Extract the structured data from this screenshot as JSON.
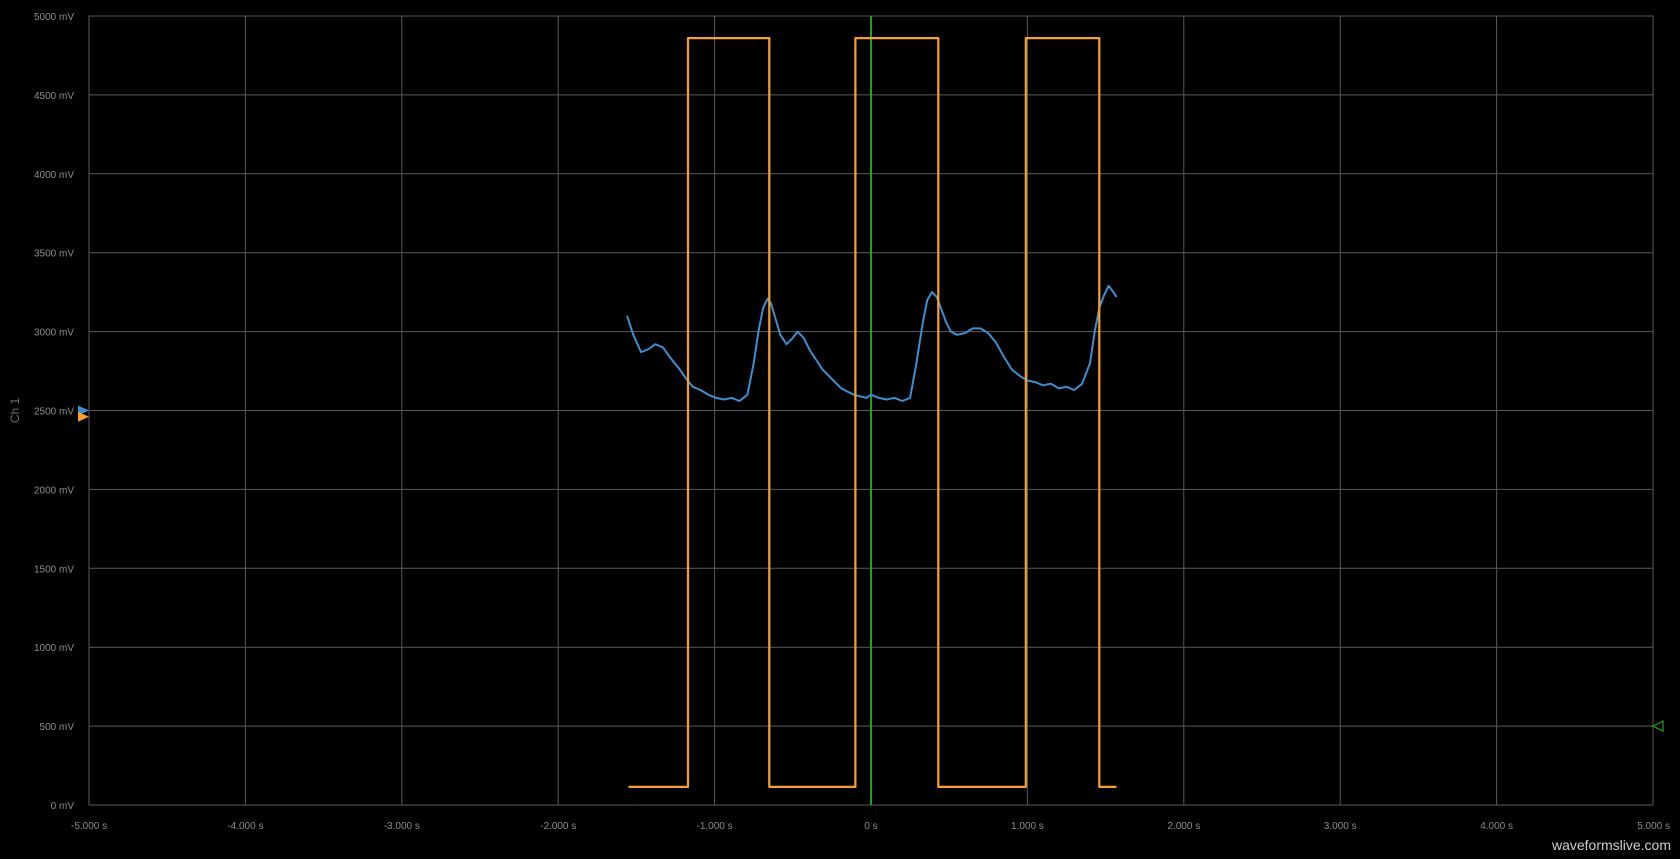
{
  "watermark": "waveformslive.com",
  "colors": {
    "background": "#000000",
    "grid": "#5a5a5a",
    "cursor": "#1fa31f",
    "ch1": "#3d8fd0",
    "ch2": "#f7a12a",
    "tick_text": "#8c8c8c"
  },
  "chart_data": {
    "type": "line",
    "ylabel": "Ch 1",
    "xlim": [
      -5.0,
      5.0
    ],
    "ylim": [
      0,
      5000
    ],
    "grid": true,
    "x_ticks": [
      -5,
      -4,
      -3,
      -2,
      -1,
      0,
      1,
      2,
      3,
      4,
      5
    ],
    "x_tick_labels": [
      "-5.000 s",
      "-4.000 s",
      "-3.000 s",
      "-2.000 s",
      "-1.000 s",
      "0 s",
      "1.000 s",
      "2.000 s",
      "3.000 s",
      "4.000 s",
      "5.000 s"
    ],
    "y_ticks": [
      0,
      500,
      1000,
      1500,
      2000,
      2500,
      3000,
      3500,
      4000,
      4500,
      5000
    ],
    "y_tick_labels": [
      "0 mV",
      "500 mV",
      "1000 mV",
      "1500 mV",
      "2000 mV",
      "2500 mV",
      "3000 mV",
      "3500 mV",
      "4000 mV",
      "4500 mV",
      "5000 mV"
    ],
    "cursor_x": 0,
    "ch1_offset_marker": 2500,
    "ch2_offset_marker": 2460,
    "trigger_level_marker": 500,
    "series": [
      {
        "key": "ch1",
        "x": [
          -1.56,
          -1.52,
          -1.47,
          -1.42,
          -1.38,
          -1.33,
          -1.28,
          -1.23,
          -1.18,
          -1.14,
          -1.09,
          -1.04,
          -0.99,
          -0.94,
          -0.89,
          -0.84,
          -0.79,
          -0.75,
          -0.72,
          -0.69,
          -0.66,
          -0.64,
          -0.61,
          -0.58,
          -0.54,
          -0.5,
          -0.47,
          -0.43,
          -0.39,
          -0.35,
          -0.31,
          -0.27,
          -0.23,
          -0.19,
          -0.15,
          -0.11,
          -0.07,
          -0.03,
          0.0,
          0.05,
          0.1,
          0.15,
          0.2,
          0.25,
          0.29,
          0.33,
          0.36,
          0.39,
          0.42,
          0.45,
          0.48,
          0.51,
          0.55,
          0.6,
          0.65,
          0.7,
          0.75,
          0.8,
          0.85,
          0.9,
          0.95,
          1.0,
          1.05,
          1.1,
          1.15,
          1.2,
          1.25,
          1.3,
          1.35,
          1.4,
          1.43,
          1.46,
          1.49,
          1.52,
          1.55,
          1.57
        ],
        "y": [
          3100,
          2980,
          2870,
          2890,
          2920,
          2900,
          2830,
          2770,
          2700,
          2650,
          2630,
          2600,
          2580,
          2570,
          2580,
          2560,
          2600,
          2800,
          3000,
          3150,
          3210,
          3180,
          3080,
          2980,
          2920,
          2960,
          3000,
          2960,
          2880,
          2820,
          2760,
          2720,
          2680,
          2640,
          2620,
          2600,
          2590,
          2580,
          2600,
          2580,
          2570,
          2580,
          2560,
          2580,
          2800,
          3050,
          3200,
          3250,
          3220,
          3140,
          3060,
          3000,
          2980,
          2990,
          3020,
          3020,
          2990,
          2930,
          2840,
          2760,
          2720,
          2690,
          2680,
          2660,
          2670,
          2640,
          2650,
          2630,
          2670,
          2800,
          3000,
          3150,
          3230,
          3290,
          3250,
          3220
        ]
      },
      {
        "key": "ch2",
        "x": [
          -1.55,
          -1.17,
          -1.17,
          -0.65,
          -0.65,
          -0.1,
          -0.1,
          0.43,
          0.43,
          0.99,
          0.99,
          1.46,
          1.46,
          1.57
        ],
        "y": [
          115,
          115,
          4860,
          4860,
          115,
          115,
          4860,
          4860,
          115,
          115,
          4860,
          4860,
          115,
          115
        ]
      }
    ]
  }
}
